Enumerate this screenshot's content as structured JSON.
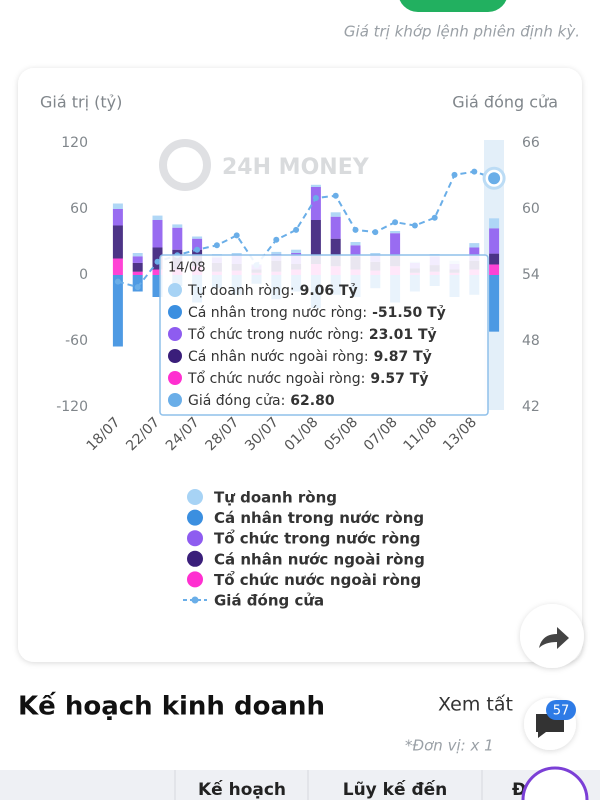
{
  "header": {
    "note": "Giá trị khớp lệnh phiên định kỳ."
  },
  "chart_data": {
    "type": "stacked_bar_line",
    "y_label": "Giá trị (tỷ)",
    "y2_label": "Giá đóng cửa",
    "watermark": "24H MONEY",
    "categories": [
      "18/07",
      null,
      "22/07",
      null,
      "24/07",
      null,
      "28/07",
      null,
      "30/07",
      null,
      "01/08",
      null,
      "05/08",
      null,
      "07/08",
      null,
      "11/08",
      null,
      "13/08",
      null
    ],
    "ylim": [
      -120,
      120
    ],
    "yticks": [
      -120,
      -60,
      0,
      60,
      120
    ],
    "y2lim": [
      42,
      66
    ],
    "y2ticks": [
      42,
      48,
      54,
      60,
      66
    ],
    "grid": false,
    "series": [
      {
        "name": "Tự doanh ròng",
        "color": "#a7d3f5",
        "values": [
          5,
          3,
          4,
          3,
          2,
          3,
          2,
          1,
          2,
          3,
          2,
          4,
          3,
          2,
          2,
          1,
          2,
          3,
          4,
          9.06
        ],
        "value_labels": [
          null,
          null,
          null,
          null,
          null,
          null,
          null,
          null,
          null,
          null,
          null,
          null,
          null,
          null,
          null,
          null,
          null,
          null,
          null,
          "9.06 Tỷ"
        ]
      },
      {
        "name": "Cá nhân trong nước ròng",
        "color": "#3b8fe0",
        "values": [
          -65,
          -15,
          -20,
          -10,
          -25,
          -12,
          -18,
          -8,
          -22,
          -15,
          -30,
          -18,
          -20,
          -12,
          -25,
          -15,
          -10,
          -20,
          -18,
          -51.5
        ],
        "value_labels": [
          null,
          null,
          null,
          null,
          null,
          null,
          null,
          null,
          null,
          null,
          null,
          null,
          null,
          null,
          null,
          null,
          null,
          null,
          null,
          "-51.50 Tỷ"
        ]
      },
      {
        "name": "Tổ chức trong nước ròng",
        "color": "#8e5cf0",
        "values": [
          15,
          6,
          25,
          20,
          10,
          5,
          8,
          4,
          6,
          10,
          30,
          20,
          10,
          6,
          20,
          5,
          8,
          5,
          12,
          23.01
        ],
        "value_labels": [
          null,
          null,
          null,
          null,
          null,
          null,
          null,
          null,
          null,
          null,
          null,
          null,
          null,
          null,
          null,
          null,
          null,
          null,
          null,
          "23.01 Tỷ"
        ]
      },
      {
        "name": "Cá nhân nước ngoài ròng",
        "color": "#3a1e7a",
        "values": [
          30,
          8,
          20,
          18,
          15,
          8,
          6,
          3,
          10,
          5,
          40,
          25,
          12,
          8,
          10,
          4,
          6,
          3,
          8,
          9.87
        ],
        "value_labels": [
          null,
          null,
          null,
          null,
          null,
          null,
          null,
          null,
          null,
          null,
          null,
          null,
          null,
          null,
          null,
          null,
          null,
          null,
          null,
          "9.87 Tỷ"
        ]
      },
      {
        "name": "Tổ chức nước ngoài ròng",
        "color": "#ff2fd0",
        "values": [
          15,
          3,
          5,
          5,
          8,
          3,
          4,
          2,
          3,
          5,
          10,
          8,
          5,
          4,
          8,
          2,
          3,
          2,
          5,
          9.57
        ],
        "value_labels": [
          null,
          null,
          null,
          null,
          null,
          null,
          null,
          null,
          null,
          null,
          null,
          null,
          null,
          null,
          null,
          null,
          null,
          null,
          null,
          "9.57 Tỷ"
        ]
      },
      {
        "name": "Giá đóng cửa",
        "color": "#6aaee8",
        "axis": "y2",
        "kind": "line",
        "values": [
          53.4,
          52.9,
          55.2,
          55.8,
          56.3,
          56.7,
          57.6,
          54.9,
          57.2,
          58.1,
          61.0,
          61.2,
          58.1,
          57.9,
          58.8,
          58.5,
          59.2,
          63.1,
          63.4,
          62.8
        ],
        "value_labels": [
          null,
          null,
          null,
          null,
          null,
          null,
          null,
          null,
          null,
          null,
          null,
          null,
          null,
          null,
          null,
          null,
          null,
          null,
          null,
          "62.80"
        ]
      }
    ],
    "tooltip": {
      "title": "14/08",
      "labels": [
        "Tự doanh ròng:",
        "Cá nhân trong nước ròng:",
        "Tổ chức trong nước ròng:",
        "Cá nhân nước ngoài ròng:",
        "Tổ chức nước ngoài ròng:",
        "Giá đóng cửa:"
      ]
    }
  },
  "section": {
    "title": "Kế hoạch kinh doanh",
    "see_all": "Xem tất",
    "unit": "*Đơn vị: x 1",
    "badge": "57",
    "table_header": [
      "Kế hoạch",
      "Lũy kế đến",
      "Đ"
    ]
  }
}
